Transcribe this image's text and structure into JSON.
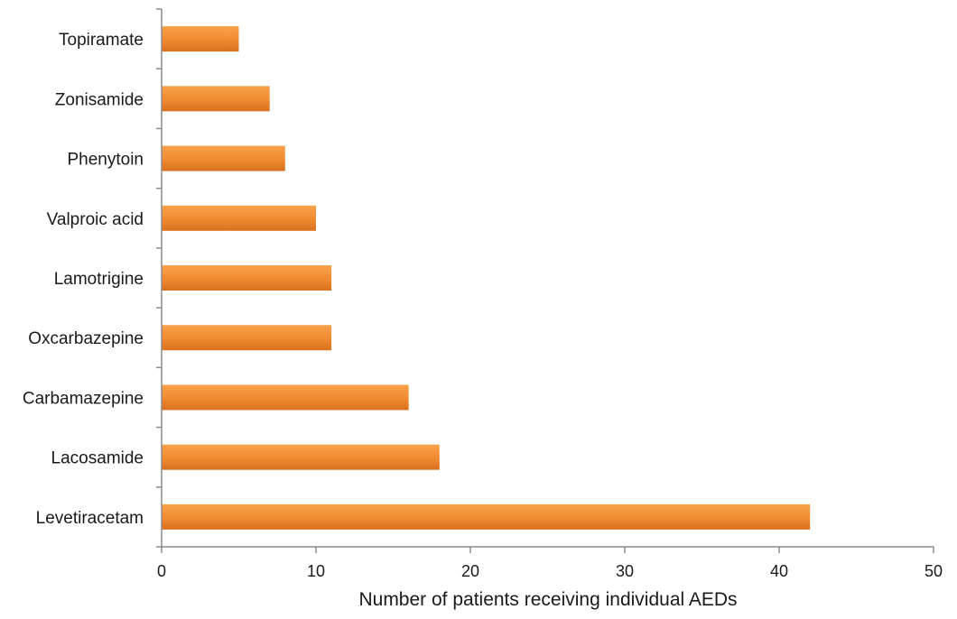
{
  "chart_data": {
    "type": "bar",
    "orientation": "horizontal",
    "categories": [
      "Topiramate",
      "Zonisamide",
      "Phenytoin",
      "Valproic acid",
      "Lamotrigine",
      "Oxcarbazepine",
      "Carbamazepine",
      "Lacosamide",
      "Levetiracetam"
    ],
    "values": [
      5,
      7,
      8,
      10,
      11,
      11,
      16,
      18,
      42
    ],
    "xlabel": "Number of patients receiving individual AEDs",
    "ylabel": "",
    "xlim": [
      0,
      50
    ],
    "xticks": [
      0,
      10,
      20,
      30,
      40,
      50
    ],
    "grid": false,
    "colors": {
      "bar_light": "#f9a24a",
      "bar_dark": "#d9701e",
      "axis": "#8c8c8c"
    }
  }
}
